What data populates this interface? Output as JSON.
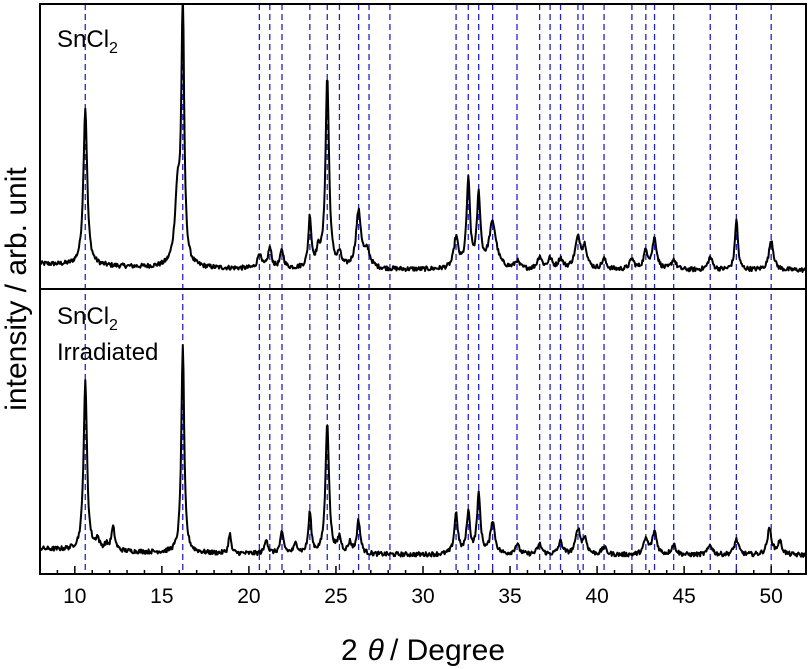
{
  "chart_data": {
    "type": "line",
    "xlabel_prefix": "2",
    "xlabel_symbol": "θ",
    "xlabel_suffix": "/ Degree",
    "ylabel": "intensity / arb. unit",
    "xlim": [
      8,
      52
    ],
    "xticks": [
      10,
      15,
      20,
      25,
      30,
      35,
      40,
      45,
      50
    ],
    "grid": false,
    "legend": "none",
    "colors": {
      "trace": "#000000",
      "reference_lines": "#2222cc"
    },
    "reference_lines_2theta": [
      10.6,
      16.2,
      20.6,
      21.2,
      21.9,
      23.5,
      24.5,
      25.2,
      26.3,
      26.9,
      28.1,
      31.9,
      32.6,
      33.2,
      34.0,
      35.4,
      36.7,
      37.3,
      37.9,
      38.9,
      39.2,
      40.4,
      42.0,
      42.8,
      43.3,
      44.4,
      46.5,
      48.0,
      50.0
    ],
    "panels": [
      {
        "label_main": "SnCl",
        "label_sub": "2",
        "label_extra": "",
        "baseline": 0.05,
        "peaks": [
          [
            10.6,
            0.62,
            0.13
          ],
          [
            15.9,
            0.28,
            0.18
          ],
          [
            16.2,
            1.0,
            0.1
          ],
          [
            20.6,
            0.06,
            0.12
          ],
          [
            21.2,
            0.08,
            0.12
          ],
          [
            21.9,
            0.07,
            0.12
          ],
          [
            23.5,
            0.2,
            0.1
          ],
          [
            24.0,
            0.06,
            0.15
          ],
          [
            24.5,
            0.75,
            0.12
          ],
          [
            25.2,
            0.05,
            0.12
          ],
          [
            26.3,
            0.22,
            0.18
          ],
          [
            26.8,
            0.06,
            0.2
          ],
          [
            31.9,
            0.12,
            0.15
          ],
          [
            32.6,
            0.34,
            0.12
          ],
          [
            33.2,
            0.28,
            0.12
          ],
          [
            34.0,
            0.18,
            0.25
          ],
          [
            35.4,
            0.03,
            0.15
          ],
          [
            36.7,
            0.05,
            0.15
          ],
          [
            37.3,
            0.04,
            0.15
          ],
          [
            37.9,
            0.04,
            0.15
          ],
          [
            38.9,
            0.12,
            0.2
          ],
          [
            39.3,
            0.08,
            0.15
          ],
          [
            40.4,
            0.04,
            0.15
          ],
          [
            42.0,
            0.04,
            0.15
          ],
          [
            42.8,
            0.07,
            0.15
          ],
          [
            43.3,
            0.12,
            0.15
          ],
          [
            44.4,
            0.04,
            0.15
          ],
          [
            46.5,
            0.05,
            0.15
          ],
          [
            48.0,
            0.2,
            0.1
          ],
          [
            50.0,
            0.12,
            0.15
          ]
        ]
      },
      {
        "label_main": "SnCl",
        "label_sub": "2",
        "label_extra": "Irradiated",
        "baseline": 0.05,
        "peaks": [
          [
            10.6,
            0.66,
            0.12
          ],
          [
            11.3,
            0.04,
            0.12
          ],
          [
            11.8,
            0.02,
            0.12
          ],
          [
            12.2,
            0.09,
            0.12
          ],
          [
            16.2,
            0.82,
            0.1
          ],
          [
            18.9,
            0.08,
            0.08
          ],
          [
            21.0,
            0.06,
            0.1
          ],
          [
            21.9,
            0.08,
            0.12
          ],
          [
            22.7,
            0.04,
            0.12
          ],
          [
            23.5,
            0.16,
            0.1
          ],
          [
            24.5,
            0.52,
            0.12
          ],
          [
            25.2,
            0.06,
            0.12
          ],
          [
            25.8,
            0.04,
            0.12
          ],
          [
            26.3,
            0.13,
            0.12
          ],
          [
            31.9,
            0.16,
            0.12
          ],
          [
            32.6,
            0.16,
            0.12
          ],
          [
            33.2,
            0.23,
            0.12
          ],
          [
            34.0,
            0.13,
            0.15
          ],
          [
            35.4,
            0.04,
            0.15
          ],
          [
            36.7,
            0.04,
            0.15
          ],
          [
            37.9,
            0.05,
            0.15
          ],
          [
            38.9,
            0.1,
            0.15
          ],
          [
            39.3,
            0.06,
            0.15
          ],
          [
            40.4,
            0.03,
            0.15
          ],
          [
            42.8,
            0.06,
            0.15
          ],
          [
            43.3,
            0.09,
            0.15
          ],
          [
            44.4,
            0.04,
            0.15
          ],
          [
            46.5,
            0.04,
            0.15
          ],
          [
            48.0,
            0.06,
            0.15
          ],
          [
            49.9,
            0.1,
            0.15
          ],
          [
            50.5,
            0.05,
            0.15
          ]
        ]
      }
    ]
  }
}
